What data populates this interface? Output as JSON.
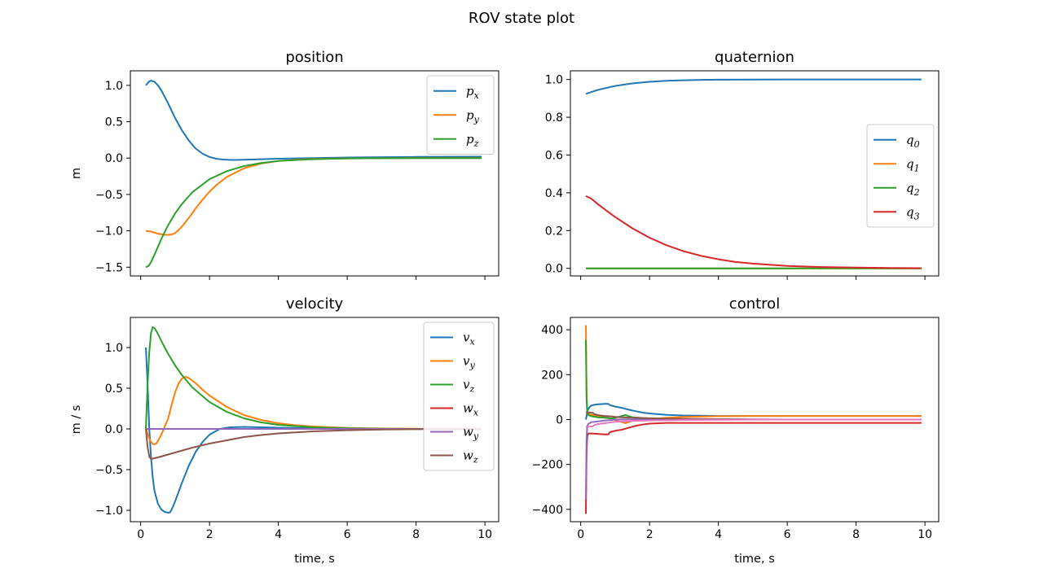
{
  "figure_title": "ROV state plot",
  "colors": {
    "c0": "#1f77b4",
    "c1": "#ff7f0e",
    "c2": "#2ca02c",
    "c3": "#d62728",
    "c4": "#9467bd",
    "c5": "#8c564b",
    "c6": "#e377c2"
  },
  "chart_data": [
    {
      "type": "line",
      "title": "position",
      "xlabel": "",
      "ylabel": "m",
      "xlim": [
        -0.3,
        10.4
      ],
      "ylim": [
        -1.62,
        1.2
      ],
      "xticks": [
        0,
        2,
        4,
        6,
        8,
        10
      ],
      "show_xtick_labels": false,
      "yticks": [
        -1.5,
        -1.0,
        -0.5,
        0.0,
        0.5,
        1.0
      ],
      "ytick_labels": [
        "−1.5",
        "−1.0",
        "−0.5",
        "0.0",
        "0.5",
        "1.0"
      ],
      "legend_position": "upper-right",
      "series": [
        {
          "name": "p",
          "sub": "x",
          "color": "#1f77b4",
          "x": [
            0.15,
            0.2,
            0.25,
            0.3,
            0.4,
            0.5,
            0.6,
            0.7,
            0.8,
            0.9,
            1.0,
            1.2,
            1.4,
            1.6,
            1.8,
            2.0,
            2.2,
            2.4,
            2.6,
            2.8,
            3.0,
            3.5,
            4.0,
            5.0,
            6.0,
            7.0,
            8.0,
            9.0,
            9.9
          ],
          "y": [
            1.0,
            1.03,
            1.055,
            1.065,
            1.05,
            1.0,
            0.93,
            0.84,
            0.75,
            0.65,
            0.55,
            0.38,
            0.24,
            0.13,
            0.06,
            0.015,
            -0.01,
            -0.02,
            -0.025,
            -0.025,
            -0.023,
            -0.015,
            -0.008,
            0.0,
            0.008,
            0.012,
            0.016,
            0.018,
            0.02
          ]
        },
        {
          "name": "p",
          "sub": "y",
          "color": "#ff7f0e",
          "x": [
            0.15,
            0.3,
            0.5,
            0.7,
            0.8,
            0.9,
            1.0,
            1.1,
            1.2,
            1.4,
            1.6,
            1.8,
            2.0,
            2.2,
            2.5,
            3.0,
            3.5,
            4.0,
            4.5,
            5.0,
            6.0,
            7.0,
            8.0,
            9.0,
            9.9
          ],
          "y": [
            -1.0,
            -1.01,
            -1.04,
            -1.055,
            -1.055,
            -1.05,
            -1.03,
            -0.99,
            -0.94,
            -0.82,
            -0.69,
            -0.57,
            -0.46,
            -0.37,
            -0.26,
            -0.14,
            -0.075,
            -0.04,
            -0.022,
            -0.012,
            -0.004,
            -0.001,
            0.0,
            0.0,
            0.0
          ]
        },
        {
          "name": "p",
          "sub": "z",
          "color": "#2ca02c",
          "x": [
            0.15,
            0.2,
            0.25,
            0.3,
            0.4,
            0.5,
            0.6,
            0.8,
            1.0,
            1.2,
            1.5,
            2.0,
            2.5,
            3.0,
            3.5,
            4.0,
            5.0,
            6.0,
            7.0,
            8.0,
            9.0,
            9.9
          ],
          "y": [
            -1.5,
            -1.49,
            -1.47,
            -1.43,
            -1.33,
            -1.22,
            -1.11,
            -0.92,
            -0.76,
            -0.63,
            -0.47,
            -0.29,
            -0.18,
            -0.11,
            -0.067,
            -0.04,
            -0.015,
            -0.005,
            -0.002,
            0.0,
            0.0,
            0.0
          ]
        }
      ]
    },
    {
      "type": "line",
      "title": "quaternion",
      "xlabel": "",
      "ylabel": "",
      "xlim": [
        -0.3,
        10.4
      ],
      "ylim": [
        -0.04,
        1.046
      ],
      "xticks": [
        0,
        2,
        4,
        6,
        8,
        10
      ],
      "show_xtick_labels": false,
      "yticks": [
        0.0,
        0.2,
        0.4,
        0.6,
        0.8,
        1.0
      ],
      "ytick_labels": [
        "0.0",
        "0.2",
        "0.4",
        "0.6",
        "0.8",
        "1.0"
      ],
      "legend_position": "center-right",
      "series": [
        {
          "name": "q",
          "sub": "0",
          "color": "#1f77b4",
          "x": [
            0.15,
            0.5,
            1.0,
            1.5,
            2.0,
            2.5,
            3.0,
            3.5,
            4.0,
            5.0,
            6.0,
            7.0,
            8.0,
            9.0,
            9.9
          ],
          "y": [
            0.924,
            0.945,
            0.966,
            0.979,
            0.988,
            0.993,
            0.996,
            0.998,
            0.999,
            0.9997,
            1.0,
            1.0,
            1.0,
            1.0,
            1.0
          ]
        },
        {
          "name": "q",
          "sub": "1",
          "color": "#ff7f0e",
          "x": [
            0.15,
            9.9
          ],
          "y": [
            0.0,
            0.0
          ]
        },
        {
          "name": "q",
          "sub": "2",
          "color": "#2ca02c",
          "x": [
            0.15,
            9.9
          ],
          "y": [
            0.0,
            0.0
          ]
        },
        {
          "name": "q",
          "sub": "3",
          "color": "#d62728",
          "x": [
            0.15,
            0.3,
            0.5,
            0.75,
            1.0,
            1.5,
            2.0,
            2.5,
            3.0,
            3.5,
            4.0,
            4.5,
            5.0,
            6.0,
            7.0,
            8.0,
            9.0,
            9.9
          ],
          "y": [
            0.383,
            0.37,
            0.34,
            0.305,
            0.272,
            0.212,
            0.162,
            0.122,
            0.09,
            0.066,
            0.048,
            0.034,
            0.025,
            0.013,
            0.007,
            0.004,
            0.002,
            0.001
          ]
        }
      ]
    },
    {
      "type": "line",
      "title": "velocity",
      "xlabel": "time, s",
      "ylabel": "m / s",
      "xlim": [
        -0.3,
        10.4
      ],
      "ylim": [
        -1.14,
        1.37
      ],
      "xticks": [
        0,
        2,
        4,
        6,
        8,
        10
      ],
      "show_xtick_labels": true,
      "xtick_labels": [
        "0",
        "2",
        "4",
        "6",
        "8",
        "10"
      ],
      "yticks": [
        -1.0,
        -0.5,
        0.0,
        0.5,
        1.0
      ],
      "ytick_labels": [
        "−1.0",
        "−0.5",
        "0.0",
        "0.5",
        "1.0"
      ],
      "legend_position": "upper-right",
      "series": [
        {
          "name": "v",
          "sub": "x",
          "color": "#1f77b4",
          "x": [
            0.15,
            0.2,
            0.25,
            0.3,
            0.35,
            0.4,
            0.5,
            0.6,
            0.7,
            0.8,
            0.85,
            0.9,
            1.0,
            1.2,
            1.4,
            1.6,
            1.8,
            2.0,
            2.3,
            2.6,
            3.0,
            3.5,
            4.0,
            5.0,
            6.0,
            7.0,
            8.0,
            9.0,
            9.9
          ],
          "y": [
            1.0,
            0.55,
            0.0,
            -0.35,
            -0.6,
            -0.76,
            -0.92,
            -0.99,
            -1.02,
            -1.03,
            -1.025,
            -0.99,
            -0.89,
            -0.66,
            -0.45,
            -0.28,
            -0.16,
            -0.07,
            0.0,
            0.02,
            0.025,
            0.02,
            0.015,
            0.008,
            0.003,
            0.0,
            0.0,
            0.0,
            0.0
          ]
        },
        {
          "name": "v",
          "sub": "y",
          "color": "#ff7f0e",
          "x": [
            0.15,
            0.2,
            0.25,
            0.3,
            0.35,
            0.4,
            0.45,
            0.5,
            0.6,
            0.7,
            0.8,
            0.9,
            1.0,
            1.1,
            1.2,
            1.3,
            1.4,
            1.6,
            1.8,
            2.0,
            2.5,
            3.0,
            3.5,
            4.0,
            4.5,
            5.0,
            6.0,
            7.0,
            8.0,
            9.0,
            9.9
          ],
          "y": [
            0.0,
            -0.06,
            -0.12,
            -0.16,
            -0.185,
            -0.19,
            -0.18,
            -0.15,
            -0.07,
            0.03,
            0.13,
            0.3,
            0.45,
            0.56,
            0.62,
            0.64,
            0.625,
            0.56,
            0.48,
            0.41,
            0.27,
            0.17,
            0.11,
            0.07,
            0.045,
            0.03,
            0.012,
            0.005,
            0.002,
            0.0,
            0.0
          ]
        },
        {
          "name": "v",
          "sub": "z",
          "color": "#2ca02c",
          "x": [
            0.15,
            0.2,
            0.25,
            0.3,
            0.35,
            0.4,
            0.5,
            0.6,
            0.8,
            1.0,
            1.2,
            1.5,
            2.0,
            2.5,
            3.0,
            3.5,
            4.0,
            5.0,
            6.0,
            7.0,
            8.0,
            9.0,
            9.9
          ],
          "y": [
            0.0,
            0.55,
            0.95,
            1.18,
            1.25,
            1.24,
            1.17,
            1.08,
            0.92,
            0.78,
            0.66,
            0.51,
            0.33,
            0.21,
            0.13,
            0.08,
            0.05,
            0.02,
            0.007,
            0.002,
            0.0,
            0.0,
            0.0
          ]
        },
        {
          "name": "w",
          "sub": "x",
          "color": "#d62728",
          "x": [
            0.15,
            9.9
          ],
          "y": [
            0.0,
            0.0
          ]
        },
        {
          "name": "w",
          "sub": "y",
          "color": "#9467bd",
          "x": [
            0.15,
            9.9
          ],
          "y": [
            0.0,
            0.0
          ]
        },
        {
          "name": "w",
          "sub": "z",
          "color": "#8c564b",
          "x": [
            0.15,
            0.2,
            0.25,
            0.3,
            0.35,
            0.5,
            0.75,
            1.0,
            1.5,
            2.0,
            2.5,
            3.0,
            3.5,
            4.0,
            5.0,
            6.0,
            7.0,
            8.0,
            9.0,
            9.9
          ],
          "y": [
            0.0,
            -0.22,
            -0.34,
            -0.37,
            -0.365,
            -0.35,
            -0.32,
            -0.29,
            -0.23,
            -0.18,
            -0.14,
            -0.1,
            -0.075,
            -0.055,
            -0.03,
            -0.016,
            -0.008,
            -0.004,
            -0.002,
            -0.001
          ]
        }
      ]
    },
    {
      "type": "line",
      "title": "control",
      "xlabel": "time, s",
      "ylabel": "",
      "xlim": [
        -0.3,
        10.4
      ],
      "ylim": [
        -455,
        455
      ],
      "xticks": [
        0,
        2,
        4,
        6,
        8,
        10
      ],
      "show_xtick_labels": true,
      "xtick_labels": [
        "0",
        "2",
        "4",
        "6",
        "8",
        "10"
      ],
      "yticks": [
        -400,
        -200,
        0,
        200,
        400
      ],
      "ytick_labels": [
        "−400",
        "−200",
        "0",
        "200",
        "400"
      ],
      "legend_position": "none",
      "series": [
        {
          "name": "",
          "color": "#1f77b4",
          "x": [
            0.15,
            0.2,
            0.25,
            0.3,
            0.4,
            0.5,
            0.6,
            0.7,
            0.8,
            0.85,
            0.9,
            1.0,
            1.2,
            1.4,
            1.6,
            1.8,
            2.0,
            2.5,
            3.0,
            3.5,
            4.0,
            5.0,
            6.0,
            7.0,
            8.0,
            9.0,
            9.9
          ],
          "y": [
            0,
            40,
            55,
            62,
            66,
            68,
            69,
            70,
            70,
            64,
            62,
            58,
            52,
            44,
            37,
            31,
            27,
            21,
            18,
            17,
            16,
            16,
            16,
            16,
            16,
            16,
            16
          ]
        },
        {
          "name": "",
          "color": "#ff7f0e",
          "x": [
            0.15,
            0.17,
            0.19,
            0.22,
            0.3,
            0.5,
            0.7,
            0.9,
            1.0,
            1.1,
            1.2,
            1.3,
            1.5,
            2.0,
            2.5,
            3.0,
            4.0,
            5.0,
            6.0,
            7.0,
            8.0,
            9.0,
            9.9
          ],
          "y": [
            420,
            120,
            40,
            25,
            22,
            15,
            10,
            5,
            -2,
            -8,
            -12,
            -16,
            -6,
            2,
            8,
            12,
            15,
            16,
            16,
            16,
            16,
            16,
            16
          ]
        },
        {
          "name": "",
          "color": "#2ca02c",
          "x": [
            0.15,
            0.17,
            0.19,
            0.22,
            0.3,
            0.5,
            0.7,
            0.9,
            1.0,
            1.1,
            1.2,
            1.3,
            1.5,
            2.0,
            2.5,
            3.0,
            4.0,
            5.0,
            6.0,
            7.0,
            8.0,
            9.0,
            9.9
          ],
          "y": [
            355,
            90,
            30,
            20,
            15,
            10,
            8,
            5,
            8,
            12,
            16,
            20,
            10,
            5,
            3,
            2,
            1,
            0,
            0,
            0,
            0,
            0,
            0
          ]
        },
        {
          "name": "",
          "color": "#d62728",
          "x": [
            0.15,
            0.17,
            0.19,
            0.22,
            0.3,
            0.5,
            0.7,
            0.8,
            0.85,
            0.9,
            1.0,
            1.2,
            1.4,
            1.6,
            1.8,
            2.0,
            2.5,
            3.0,
            4.0,
            5.0,
            6.0,
            7.0,
            8.0,
            9.0,
            9.9
          ],
          "y": [
            -420,
            -150,
            -75,
            -62,
            -62,
            -64,
            -66,
            -66,
            -56,
            -54,
            -50,
            -45,
            -36,
            -28,
            -22,
            -18,
            -15,
            -15,
            -15,
            -15,
            -15,
            -15,
            -15,
            -15,
            -15
          ]
        },
        {
          "name": "",
          "color": "#9467bd",
          "x": [
            0.15,
            0.17,
            0.19,
            0.22,
            0.3,
            0.5,
            0.7,
            0.9,
            1.0,
            1.3,
            1.6,
            2.0,
            2.5,
            3.0,
            4.0,
            5.0,
            6.0,
            7.0,
            8.0,
            9.0,
            9.9
          ],
          "y": [
            -355,
            -80,
            -30,
            -20,
            -12,
            -8,
            -4,
            -2,
            0,
            1,
            1,
            1,
            1,
            0,
            0,
            0,
            0,
            0,
            0,
            0,
            0
          ]
        },
        {
          "name": "",
          "color": "#8c564b",
          "x": [
            0.15,
            0.2,
            0.3,
            0.35,
            0.4,
            0.5,
            0.7,
            0.9,
            1.0,
            1.2,
            1.5,
            2.0,
            2.5,
            3.0,
            4.0,
            5.0,
            6.0,
            7.0,
            8.0,
            9.0,
            9.9
          ],
          "y": [
            32,
            32,
            31,
            30,
            24,
            20,
            16,
            14,
            12,
            10,
            8,
            6,
            4,
            3,
            2,
            1,
            0,
            0,
            0,
            0,
            0
          ]
        },
        {
          "name": "",
          "color": "#e377c2",
          "x": [
            0.15,
            0.2,
            0.3,
            0.35,
            0.4,
            0.5,
            0.7,
            0.9,
            1.0,
            1.2,
            1.5,
            2.0,
            2.5,
            3.0,
            4.0,
            5.0,
            6.0,
            7.0,
            8.0,
            9.0,
            9.9
          ],
          "y": [
            -32,
            -32,
            -31,
            -30,
            -24,
            -20,
            -16,
            -12,
            -10,
            -8,
            -6,
            -4,
            -3,
            -2,
            -1,
            0,
            0,
            0,
            0,
            0,
            0
          ]
        }
      ]
    }
  ]
}
